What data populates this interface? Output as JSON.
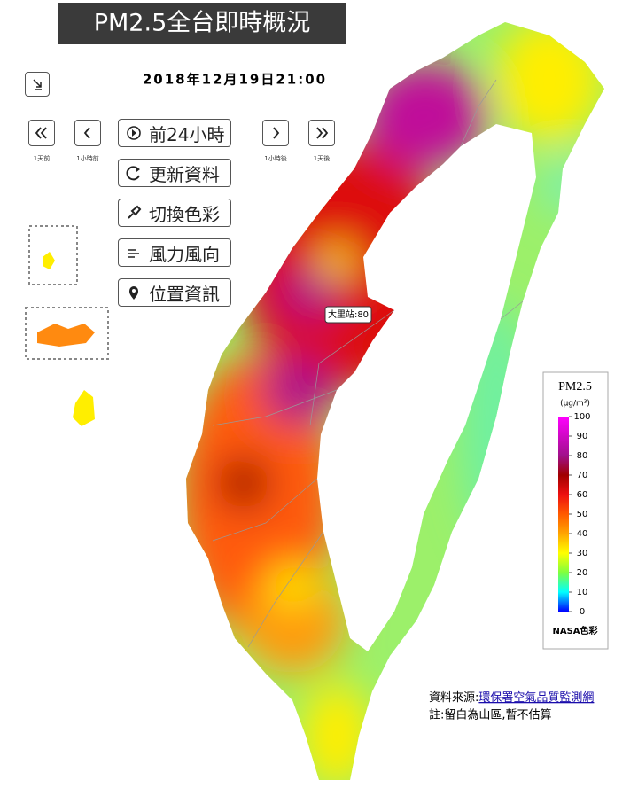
{
  "header": {
    "title": "PM2.5全台即時概況",
    "datetime": "2018年12月19日21:00"
  },
  "nav": {
    "prev_day": "1天前",
    "prev_hour": "1小時前",
    "next_hour": "1小時後",
    "next_day": "1天後"
  },
  "buttons": [
    "前24小時",
    "更新資料",
    "切換色彩",
    "風力風向",
    "位置資訊"
  ],
  "tooltip": "大里站:80",
  "legend": {
    "title": "PM2.5",
    "unit": "(μg/m³)",
    "ticks": [
      0,
      10,
      20,
      30,
      40,
      50,
      60,
      70,
      80,
      90,
      100
    ],
    "scheme": "NASA色彩"
  },
  "footer": {
    "source_label": "資料來源:",
    "source_link": "環保署空氣品質監測網",
    "note": "註:留白為山區,暫不估算"
  }
}
